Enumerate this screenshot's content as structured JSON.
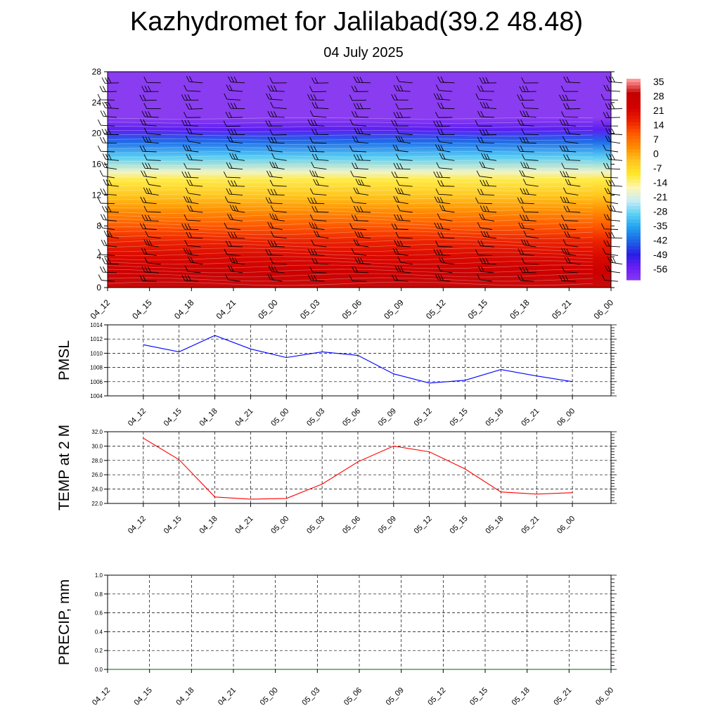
{
  "title": "Kazhydromet for Jalilabad(39.2 48.48)",
  "subtitle": "04 July 2025",
  "chart_data": [
    {
      "type": "heatmap",
      "name": "profile",
      "x_ticks": [
        "04_12",
        "04_15",
        "04_18",
        "04_21",
        "05_00",
        "05_03",
        "05_06",
        "05_09",
        "05_12",
        "05_15",
        "05_18",
        "05_21",
        "06_00"
      ],
      "y_ticks": [
        0,
        4,
        8,
        12,
        16,
        20,
        24,
        28
      ],
      "ylim": [
        0,
        28
      ],
      "colorbar_labels": [
        "35",
        "28",
        "21",
        "14",
        "7",
        "0",
        "-7",
        "-14",
        "-21",
        "-28",
        "-35",
        "-42",
        "-49",
        "-56"
      ],
      "colorbar_range": [
        -60,
        38
      ],
      "temperature_by_level": [
        {
          "level": 0,
          "value": 32
        },
        {
          "level": 2,
          "value": 27
        },
        {
          "level": 4,
          "value": 23
        },
        {
          "level": 6,
          "value": 18
        },
        {
          "level": 8,
          "value": 12
        },
        {
          "level": 10,
          "value": 5
        },
        {
          "level": 12,
          "value": -2
        },
        {
          "level": 14,
          "value": -9
        },
        {
          "level": 15,
          "value": -16
        },
        {
          "level": 17,
          "value": -28
        },
        {
          "level": 19,
          "value": -40
        },
        {
          "level": 20.5,
          "value": -52
        },
        {
          "level": 22,
          "value": -60
        },
        {
          "level": 28,
          "value": -60
        }
      ],
      "colors": {
        "scale": [
          "#8a3cf0",
          "#6a1ef5",
          "#2a1ee6",
          "#1e64e6",
          "#21a0ef",
          "#5ad0f5",
          "#c8ecf5",
          "#fff6b4",
          "#ffe82a",
          "#ffc41e",
          "#ff8c00",
          "#ff5a00",
          "#eb1e00",
          "#d20000",
          "#c30000",
          "#ff9696"
        ],
        "wind_barb": "#000000"
      }
    },
    {
      "type": "line",
      "name": "pmsl",
      "ylabel": "PMSL",
      "x": [
        "04_12",
        "04_15",
        "04_18",
        "04_21",
        "05_00",
        "05_03",
        "05_06",
        "05_09",
        "05_12",
        "05_15",
        "05_18",
        "05_21",
        "06_00"
      ],
      "values": [
        1011.2,
        1010.2,
        1012.5,
        1010.6,
        1009.4,
        1010.2,
        1009.7,
        1007.1,
        1005.8,
        1006.2,
        1007.7,
        1006.8,
        1006.0
      ],
      "ylim": [
        1004,
        1014
      ],
      "y_ticks": [
        "1004",
        "1006",
        "1008",
        "1010",
        "1012",
        "1014"
      ],
      "color": "#0000ff"
    },
    {
      "type": "line",
      "name": "temp",
      "ylabel": "TEMP at 2 M",
      "x": [
        "04_12",
        "04_15",
        "04_18",
        "04_21",
        "05_00",
        "05_03",
        "05_06",
        "05_09",
        "05_12",
        "05_15",
        "05_18",
        "05_21",
        "06_00"
      ],
      "values": [
        31.1,
        28.1,
        22.9,
        22.6,
        22.7,
        24.7,
        27.8,
        30.0,
        29.2,
        26.8,
        23.6,
        23.3,
        23.5
      ],
      "ylim": [
        22,
        32
      ],
      "y_ticks": [
        "22.0",
        "24.0",
        "26.0",
        "28.0",
        "30.0",
        "32.0"
      ],
      "color": "#ff0000"
    },
    {
      "type": "line",
      "name": "precip",
      "ylabel": "PRECIP, mm",
      "x": [
        "04_12",
        "04_15",
        "04_18",
        "04_21",
        "05_00",
        "05_03",
        "05_06",
        "05_09",
        "05_12",
        "05_15",
        "05_18",
        "05_21",
        "06_00"
      ],
      "values": [
        0,
        0,
        0,
        0,
        0,
        0,
        0,
        0,
        0,
        0,
        0,
        0,
        0
      ],
      "ylim": [
        0,
        1
      ],
      "y_ticks": [
        "0.0",
        "0.2",
        "0.4",
        "0.6",
        "0.8",
        "1.0"
      ],
      "color": "#006400"
    }
  ]
}
